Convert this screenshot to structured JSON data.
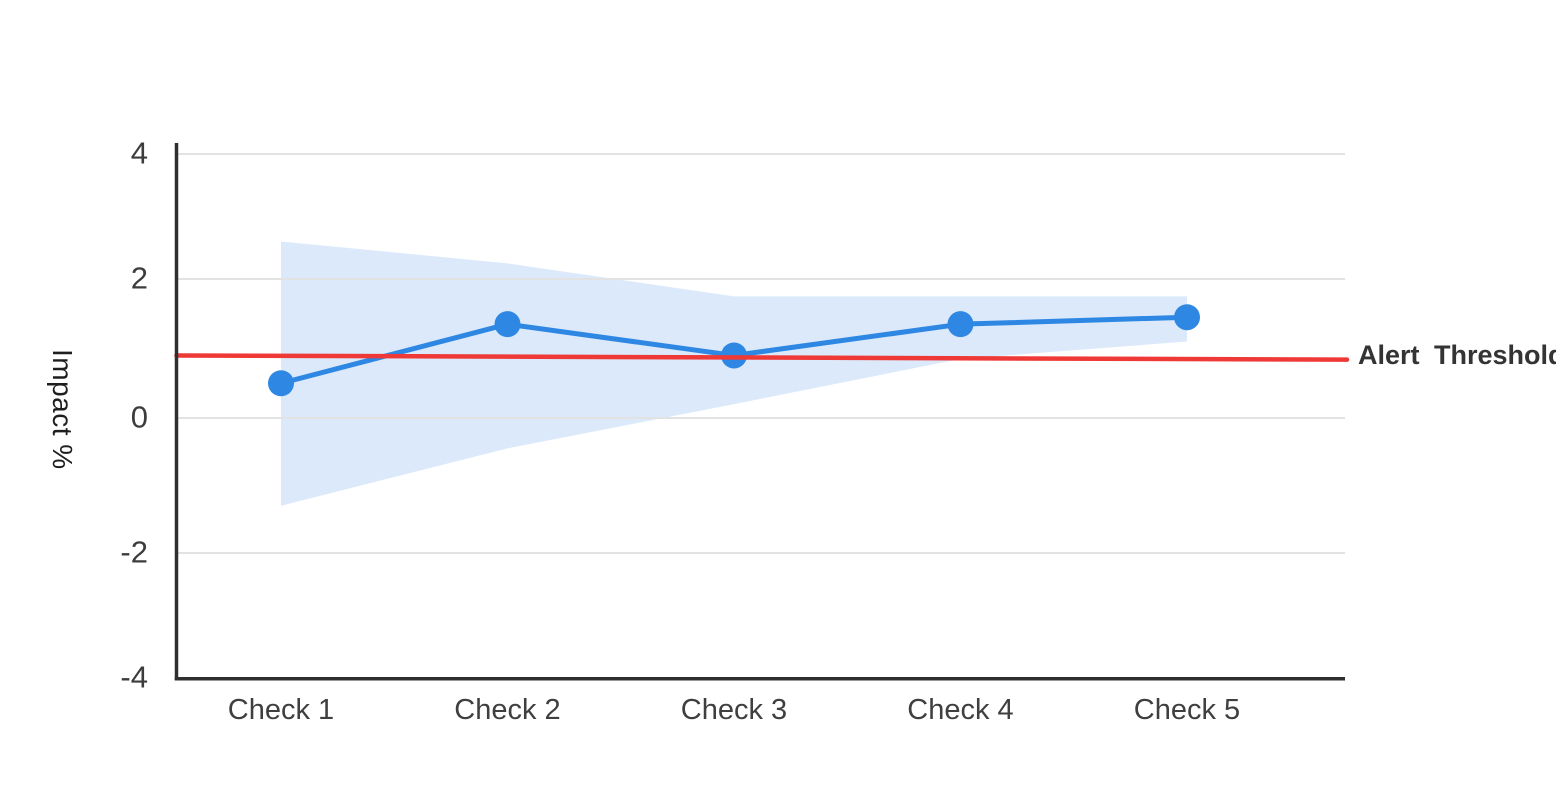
{
  "chart_data": {
    "type": "line",
    "title": "",
    "ylabel": "Impact %",
    "xlabel": "",
    "categories": [
      "Check 1",
      "Check 2",
      "Check 3",
      "Check 4",
      "Check 5"
    ],
    "series": [
      {
        "name": "Impact",
        "values": [
          0.5,
          1.35,
          0.9,
          1.35,
          1.45
        ],
        "color": "#2e87e2",
        "marker": "circle",
        "marker_radius": 13,
        "line_width": 5
      }
    ],
    "band": {
      "name": "confidence-band",
      "upper": [
        2.6,
        2.25,
        1.75,
        1.75,
        1.75
      ],
      "lower": [
        -1.3,
        -0.45,
        0.2,
        0.85,
        1.1
      ],
      "color": "#dbe9fa"
    },
    "threshold": {
      "label": "Alert Threshold",
      "start_value": 0.9,
      "end_value": 0.84,
      "color": "#ee3936",
      "line_width": 4.5
    },
    "ylim": [
      -4,
      4
    ],
    "yticks": [
      4,
      2,
      0,
      -2,
      -4
    ],
    "ytick_labels": [
      "4",
      "2",
      "0",
      "-2",
      "-4"
    ],
    "grid": true,
    "legend_position": "right-of-threshold-line",
    "colors": {
      "grid": "#e2e2e2",
      "axis": "#2f2f2f",
      "tick_text": "#3c3c3c",
      "background": "#ffffff"
    }
  }
}
